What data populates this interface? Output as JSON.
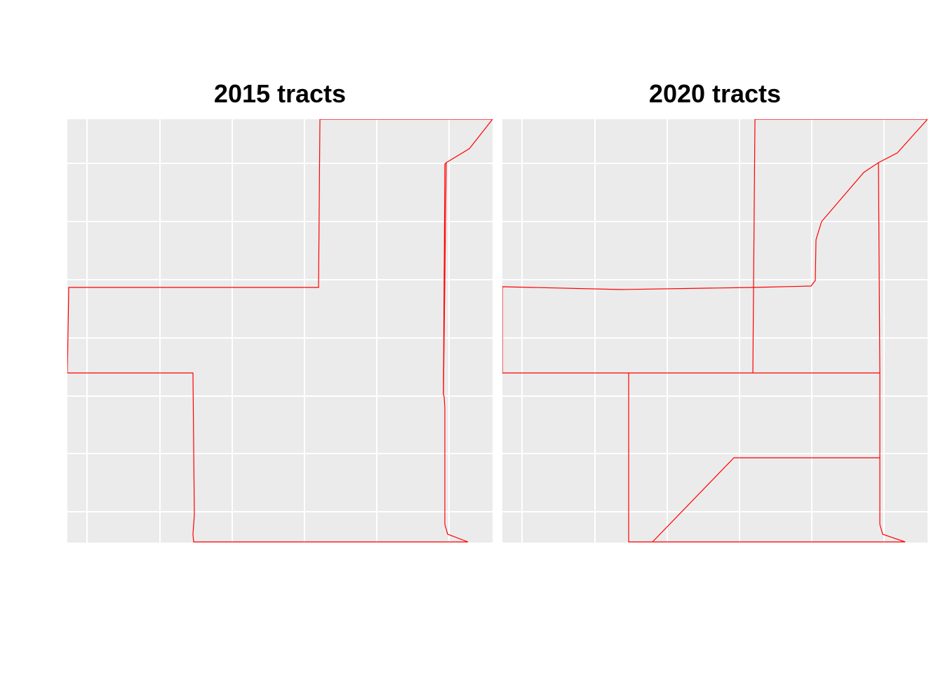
{
  "panels": [
    {
      "title": "2015 tracts",
      "boundary_color": "#ff0000",
      "background_color": "#ebebeb",
      "grid_color": "#ffffff"
    },
    {
      "title": "2020 tracts",
      "boundary_color": "#ff0000",
      "background_color": "#ebebeb",
      "grid_color": "#ffffff"
    }
  ]
}
